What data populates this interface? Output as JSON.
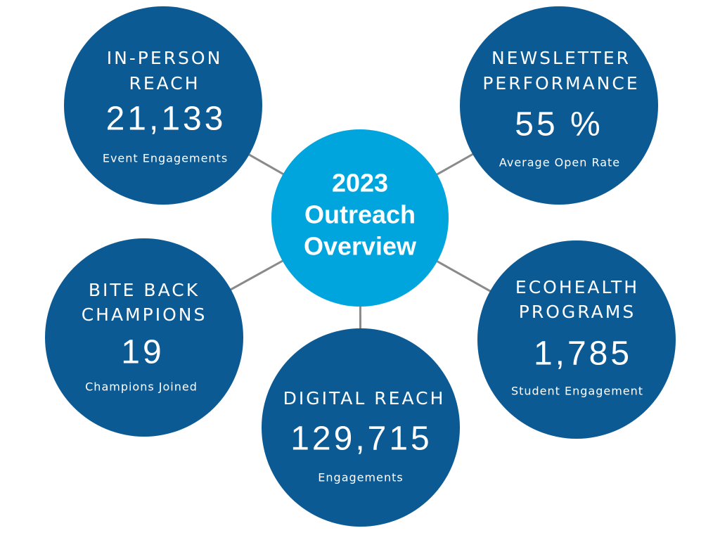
{
  "center": {
    "title_lines": [
      "2023",
      "Outreach",
      "Overview"
    ]
  },
  "nodes": [
    {
      "title_lines": [
        "IN-PERSON",
        "REACH"
      ],
      "value": "21,133",
      "caption": "Event Engagements"
    },
    {
      "title_lines": [
        "NEWSLETTER",
        "PERFORMANCE"
      ],
      "value": "55 %",
      "caption": "Average Open Rate"
    },
    {
      "title_lines": [
        "BITE BACK",
        "CHAMPIONS"
      ],
      "value": "19",
      "caption": "Champions Joined"
    },
    {
      "title_lines": [
        "DIGITAL REACH"
      ],
      "value": "129,715",
      "caption": "Engagements"
    },
    {
      "title_lines": [
        "ECOHEALTH",
        "PROGRAMS"
      ],
      "value": "1,785",
      "caption": "Student Engagement"
    }
  ]
}
